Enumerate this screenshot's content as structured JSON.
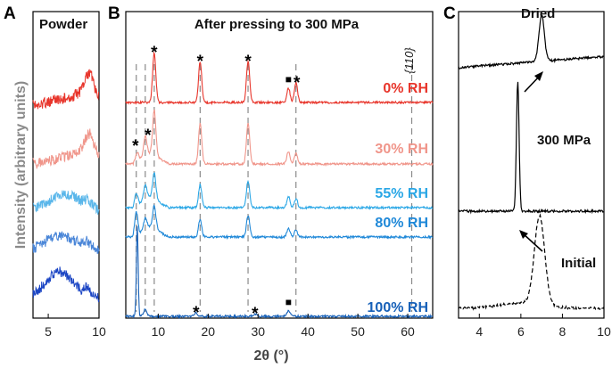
{
  "colors": {
    "dry": "#e8352b",
    "rh30": "#f0958a",
    "rh55": "#2aa7e6",
    "rh80": "#1f88d8",
    "rh100": "#1660b8",
    "blue_a3": "#59b6ea",
    "blue_a4": "#4a86d8",
    "blue_a5": "#1b45c4",
    "black": "#000000"
  },
  "figure": {
    "ylabel": "Intensity (arbitrary units)",
    "xlabel": "2θ (°)"
  },
  "chart_data": [
    {
      "panel": "A",
      "type": "line",
      "title": "Powder",
      "xlim": [
        3.5,
        10
      ],
      "xticks": [
        "5",
        "10"
      ],
      "tick_values": [
        5,
        10
      ],
      "series": [
        {
          "color": "#e8352b",
          "x": [
            3.5,
            4.5,
            5.5,
            6.5,
            7.5,
            8.2,
            8.8,
            9.2,
            9.6,
            10
          ],
          "y": [
            0.15,
            0.2,
            0.28,
            0.32,
            0.38,
            0.5,
            0.9,
            1.0,
            0.55,
            0.35
          ]
        },
        {
          "color": "#f0958a",
          "x": [
            3.5,
            4.5,
            5.5,
            6.5,
            7.5,
            8.2,
            8.8,
            9.2,
            9.6,
            10
          ],
          "y": [
            0.15,
            0.18,
            0.24,
            0.3,
            0.38,
            0.5,
            0.85,
            0.9,
            0.55,
            0.35
          ]
        },
        {
          "color": "#59b6ea",
          "x": [
            3.5,
            4.5,
            5.5,
            6.5,
            7.5,
            8.2,
            8.8,
            9.2,
            9.6,
            10
          ],
          "y": [
            0.35,
            0.45,
            0.6,
            0.75,
            0.65,
            0.55,
            0.6,
            0.5,
            0.4,
            0.3
          ]
        },
        {
          "color": "#4a86d8",
          "x": [
            3.5,
            4.5,
            5.5,
            6.5,
            7.5,
            8.2,
            8.8,
            9.2,
            9.6,
            10
          ],
          "y": [
            0.35,
            0.5,
            0.65,
            0.7,
            0.55,
            0.5,
            0.55,
            0.45,
            0.35,
            0.3
          ]
        },
        {
          "color": "#1b45c4",
          "x": [
            3.5,
            4.5,
            5.5,
            6.5,
            7.5,
            8.2,
            8.8,
            9.2,
            9.6,
            10
          ],
          "y": [
            0.3,
            0.55,
            0.85,
            0.9,
            0.6,
            0.45,
            0.5,
            0.4,
            0.3,
            0.25
          ]
        }
      ]
    },
    {
      "panel": "B",
      "type": "line",
      "title": "After pressing to 300 MPa",
      "xlim": [
        3.5,
        65
      ],
      "xticks": [
        "10",
        "20",
        "30",
        "40",
        "50",
        "60"
      ],
      "tick_values": [
        10,
        20,
        30,
        40,
        50,
        60
      ],
      "dashed_lines": [
        5.6,
        7.4,
        9.2,
        18.4,
        28.0,
        37.6,
        60.8
      ],
      "plane_label": "{110}",
      "series": [
        {
          "name": "0% RH",
          "color": "#e8352b",
          "peaks": [
            {
              "x": 9.2,
              "h": 56
            },
            {
              "x": 18.4,
              "h": 46
            },
            {
              "x": 28.0,
              "h": 46
            },
            {
              "x": 36.1,
              "h": 16
            },
            {
              "x": 37.6,
              "h": 22
            }
          ]
        },
        {
          "name": "30% RH",
          "color": "#f0958a",
          "peaks": [
            {
              "x": 5.8,
              "h": 10
            },
            {
              "x": 7.4,
              "h": 22
            },
            {
              "x": 9.2,
              "h": 50
            },
            {
              "x": 18.4,
              "h": 46
            },
            {
              "x": 28.0,
              "h": 46
            },
            {
              "x": 36.1,
              "h": 14
            },
            {
              "x": 37.6,
              "h": 12
            }
          ]
        },
        {
          "name": "55% RH",
          "color": "#2aa7e6",
          "peaks": [
            {
              "x": 5.6,
              "h": 14
            },
            {
              "x": 7.4,
              "h": 16
            },
            {
              "x": 9.2,
              "h": 28
            },
            {
              "x": 18.4,
              "h": 26
            },
            {
              "x": 28.0,
              "h": 30
            },
            {
              "x": 36.1,
              "h": 12
            },
            {
              "x": 37.6,
              "h": 10
            }
          ]
        },
        {
          "name": "80% RH",
          "color": "#1f88d8",
          "peaks": [
            {
              "x": 5.6,
              "h": 26
            },
            {
              "x": 7.4,
              "h": 12
            },
            {
              "x": 9.2,
              "h": 24
            },
            {
              "x": 18.4,
              "h": 20
            },
            {
              "x": 28.0,
              "h": 24
            },
            {
              "x": 36.1,
              "h": 10
            },
            {
              "x": 37.6,
              "h": 8
            }
          ]
        },
        {
          "name": "100% RH",
          "color": "#1660b8",
          "peaks": [
            {
              "x": 5.8,
              "h": 102
            },
            {
              "x": 7.4,
              "h": 8
            },
            {
              "x": 17.6,
              "h": 4
            },
            {
              "x": 29.4,
              "h": 3
            },
            {
              "x": 36.1,
              "h": 6
            }
          ]
        }
      ],
      "annotations": [
        {
          "series": "0% RH",
          "text": "*",
          "x": 9.2
        },
        {
          "series": "0% RH",
          "text": "*",
          "x": 18.4
        },
        {
          "series": "0% RH",
          "text": "*",
          "x": 28.0
        },
        {
          "series": "0% RH",
          "text": "■",
          "x": 36.1
        },
        {
          "series": "0% RH",
          "text": "*",
          "x": 37.6
        },
        {
          "series": "30% RH",
          "text": "*",
          "x": 5.8
        },
        {
          "series": "30% RH",
          "text": "*",
          "x": 7.4
        },
        {
          "series": "100% RH",
          "text": "*",
          "x": 17.6
        },
        {
          "series": "100% RH",
          "text": "*",
          "x": 29.4
        },
        {
          "series": "100% RH",
          "text": "■",
          "x": 36.1
        }
      ]
    },
    {
      "panel": "C",
      "type": "line",
      "xlim": [
        3,
        10
      ],
      "xticks": [
        "4",
        "6",
        "8",
        "10"
      ],
      "tick_values": [
        4,
        6,
        8,
        10
      ],
      "series": [
        {
          "name": "Dried",
          "color": "#000000",
          "style": "solid",
          "peak_x": 7.0,
          "peak_height": 52,
          "peak_width": 0.18
        },
        {
          "name": "300 MPa",
          "color": "#000000",
          "style": "solid",
          "peak_x": 5.85,
          "peak_height": 146,
          "peak_width": 0.09
        },
        {
          "name": "Initial",
          "color": "#000000",
          "style": "dashed",
          "peak_x": 6.9,
          "peak_height": 100,
          "peak_width": 0.35
        }
      ]
    }
  ]
}
